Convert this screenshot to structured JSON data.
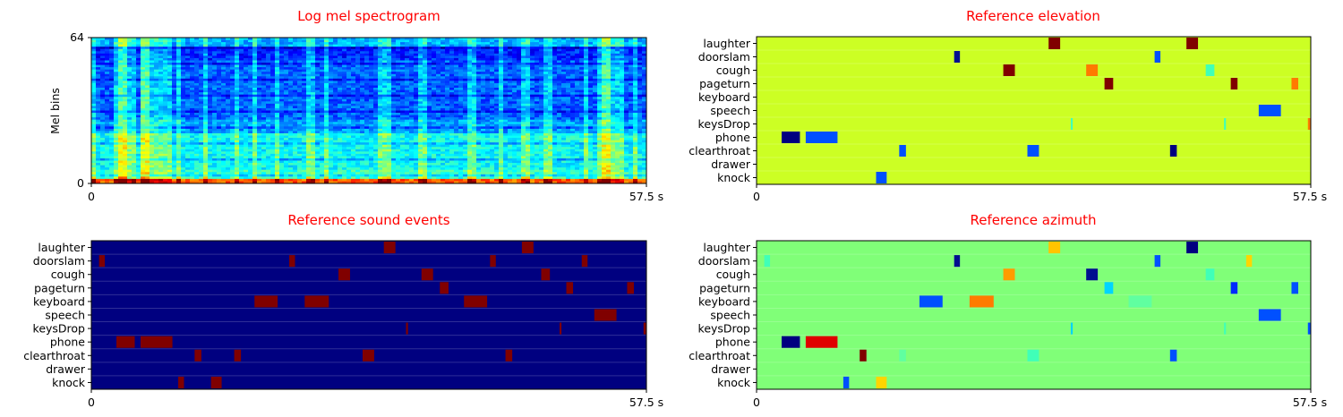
{
  "figure": {
    "title_color": "#ff0000",
    "background": "#ffffff"
  },
  "chart_data": [
    {
      "type": "heatmap",
      "id": "spectrogram",
      "title": "Log mel spectrogram",
      "ylabel": "Mel bins",
      "xlabel": "",
      "xlim": [
        0,
        57.5
      ],
      "ylim": [
        0,
        64
      ],
      "x_ticks": [
        "0",
        "57.5 s"
      ],
      "y_ticks": [
        "0",
        "64"
      ],
      "colormap": "jet",
      "noise_floor_band_color": "#00c0ff",
      "bright_columns_s": [
        0.3,
        2.6,
        3.2,
        4.5,
        5.6,
        9.0,
        11.8,
        15.1,
        17.0,
        19.2,
        22.7,
        24.3,
        29.9,
        30.6,
        34.2,
        39.4,
        42.4,
        45.0,
        47.2,
        51.2,
        52.8,
        53.6,
        56.4
      ],
      "loud_regions_s": [
        [
          2.6,
          4.3
        ],
        [
          5.2,
          8.4
        ],
        [
          52.8,
          55.0
        ]
      ]
    },
    {
      "type": "heatmap",
      "id": "elevation",
      "title": "Reference elevation",
      "xlim": [
        0,
        57.5
      ],
      "x_ticks": [
        "0",
        "57.5 s"
      ],
      "categories": [
        "laughter",
        "doorslam",
        "cough",
        "pageturn",
        "keyboard",
        "speech",
        "keysDrop",
        "phone",
        "clearthroat",
        "drawer",
        "knock"
      ],
      "background_color": "#ccff24",
      "events": [
        {
          "class": "laughter",
          "start": 30.3,
          "end": 31.5,
          "color": "#800000"
        },
        {
          "class": "laughter",
          "start": 44.6,
          "end": 45.8,
          "color": "#800000"
        },
        {
          "class": "doorslam",
          "start": 20.5,
          "end": 21.1,
          "color": "#000f8f"
        },
        {
          "class": "doorslam",
          "start": 41.3,
          "end": 41.9,
          "color": "#0050ff"
        },
        {
          "class": "cough",
          "start": 25.6,
          "end": 26.8,
          "color": "#800000"
        },
        {
          "class": "cough",
          "start": 34.2,
          "end": 35.4,
          "color": "#ff7a00"
        },
        {
          "class": "cough",
          "start": 46.6,
          "end": 47.5,
          "color": "#40ffb8"
        },
        {
          "class": "pageturn",
          "start": 36.1,
          "end": 37.0,
          "color": "#800000"
        },
        {
          "class": "pageturn",
          "start": 49.2,
          "end": 49.9,
          "color": "#800000"
        },
        {
          "class": "pageturn",
          "start": 55.5,
          "end": 56.2,
          "color": "#ff7a00"
        },
        {
          "class": "speech",
          "start": 52.1,
          "end": 54.4,
          "color": "#0050ff"
        },
        {
          "class": "keysDrop",
          "start": 32.6,
          "end": 32.8,
          "color": "#40ffb8"
        },
        {
          "class": "keysDrop",
          "start": 48.5,
          "end": 48.7,
          "color": "#40ffb8"
        },
        {
          "class": "keysDrop",
          "start": 57.2,
          "end": 57.5,
          "color": "#ff7a00"
        },
        {
          "class": "phone",
          "start": 2.6,
          "end": 4.5,
          "color": "#000080"
        },
        {
          "class": "phone",
          "start": 5.1,
          "end": 8.4,
          "color": "#0050ff"
        },
        {
          "class": "clearthroat",
          "start": 14.8,
          "end": 15.5,
          "color": "#0050ff"
        },
        {
          "class": "clearthroat",
          "start": 28.1,
          "end": 29.3,
          "color": "#0050ff"
        },
        {
          "class": "clearthroat",
          "start": 42.9,
          "end": 43.6,
          "color": "#000080"
        },
        {
          "class": "knock",
          "start": 12.4,
          "end": 13.5,
          "color": "#0050ff"
        }
      ]
    },
    {
      "type": "heatmap",
      "id": "events",
      "title": "Reference sound events",
      "xlim": [
        0,
        57.5
      ],
      "x_ticks": [
        "0",
        "57.5 s"
      ],
      "categories": [
        "laughter",
        "doorslam",
        "cough",
        "pageturn",
        "keyboard",
        "speech",
        "keysDrop",
        "phone",
        "clearthroat",
        "drawer",
        "knock"
      ],
      "background_color": "#000080",
      "events": [
        {
          "class": "laughter",
          "start": 30.3,
          "end": 31.5,
          "color": "#800000"
        },
        {
          "class": "laughter",
          "start": 44.6,
          "end": 45.8,
          "color": "#800000"
        },
        {
          "class": "doorslam",
          "start": 0.8,
          "end": 1.4,
          "color": "#800000"
        },
        {
          "class": "doorslam",
          "start": 20.5,
          "end": 21.1,
          "color": "#800000"
        },
        {
          "class": "doorslam",
          "start": 41.3,
          "end": 41.9,
          "color": "#800000"
        },
        {
          "class": "doorslam",
          "start": 50.8,
          "end": 51.4,
          "color": "#800000"
        },
        {
          "class": "cough",
          "start": 25.6,
          "end": 26.8,
          "color": "#800000"
        },
        {
          "class": "cough",
          "start": 34.2,
          "end": 35.4,
          "color": "#800000"
        },
        {
          "class": "cough",
          "start": 46.6,
          "end": 47.5,
          "color": "#800000"
        },
        {
          "class": "pageturn",
          "start": 36.1,
          "end": 37.0,
          "color": "#800000"
        },
        {
          "class": "pageturn",
          "start": 49.2,
          "end": 49.9,
          "color": "#800000"
        },
        {
          "class": "pageturn",
          "start": 55.5,
          "end": 56.2,
          "color": "#800000"
        },
        {
          "class": "keyboard",
          "start": 16.9,
          "end": 19.3,
          "color": "#800000"
        },
        {
          "class": "keyboard",
          "start": 22.1,
          "end": 24.6,
          "color": "#800000"
        },
        {
          "class": "keyboard",
          "start": 38.6,
          "end": 41.0,
          "color": "#800000"
        },
        {
          "class": "speech",
          "start": 52.1,
          "end": 54.4,
          "color": "#800000"
        },
        {
          "class": "keysDrop",
          "start": 32.6,
          "end": 32.8,
          "color": "#800000"
        },
        {
          "class": "keysDrop",
          "start": 48.5,
          "end": 48.7,
          "color": "#800000"
        },
        {
          "class": "keysDrop",
          "start": 57.2,
          "end": 57.5,
          "color": "#800000"
        },
        {
          "class": "phone",
          "start": 2.6,
          "end": 4.5,
          "color": "#800000"
        },
        {
          "class": "phone",
          "start": 5.1,
          "end": 8.4,
          "color": "#800000"
        },
        {
          "class": "clearthroat",
          "start": 10.7,
          "end": 11.4,
          "color": "#800000"
        },
        {
          "class": "clearthroat",
          "start": 14.8,
          "end": 15.5,
          "color": "#800000"
        },
        {
          "class": "clearthroat",
          "start": 28.1,
          "end": 29.3,
          "color": "#800000"
        },
        {
          "class": "clearthroat",
          "start": 42.9,
          "end": 43.6,
          "color": "#800000"
        },
        {
          "class": "knock",
          "start": 9.0,
          "end": 9.6,
          "color": "#800000"
        },
        {
          "class": "knock",
          "start": 12.4,
          "end": 13.5,
          "color": "#800000"
        }
      ]
    },
    {
      "type": "heatmap",
      "id": "azimuth",
      "title": "Reference azimuth",
      "xlim": [
        0,
        57.5
      ],
      "x_ticks": [
        "0",
        "57.5 s"
      ],
      "categories": [
        "laughter",
        "doorslam",
        "cough",
        "pageturn",
        "keyboard",
        "speech",
        "keysDrop",
        "phone",
        "clearthroat",
        "drawer",
        "knock"
      ],
      "background_color": "#80ff78",
      "events": [
        {
          "class": "laughter",
          "start": 30.3,
          "end": 31.5,
          "color": "#ffc400"
        },
        {
          "class": "laughter",
          "start": 44.6,
          "end": 45.8,
          "color": "#000080"
        },
        {
          "class": "doorslam",
          "start": 0.8,
          "end": 1.4,
          "color": "#40ffb8"
        },
        {
          "class": "doorslam",
          "start": 20.5,
          "end": 21.1,
          "color": "#000f8f"
        },
        {
          "class": "doorslam",
          "start": 41.3,
          "end": 41.9,
          "color": "#0050ff"
        },
        {
          "class": "doorslam",
          "start": 50.8,
          "end": 51.4,
          "color": "#ffd500"
        },
        {
          "class": "cough",
          "start": 25.6,
          "end": 26.8,
          "color": "#ff9c00"
        },
        {
          "class": "cough",
          "start": 34.2,
          "end": 35.4,
          "color": "#000f8f"
        },
        {
          "class": "cough",
          "start": 46.6,
          "end": 47.5,
          "color": "#40ffb8"
        },
        {
          "class": "pageturn",
          "start": 36.1,
          "end": 37.0,
          "color": "#00d4ff"
        },
        {
          "class": "pageturn",
          "start": 49.2,
          "end": 49.9,
          "color": "#0028ff"
        },
        {
          "class": "pageturn",
          "start": 55.5,
          "end": 56.2,
          "color": "#0050ff"
        },
        {
          "class": "keyboard",
          "start": 16.9,
          "end": 19.3,
          "color": "#0050ff"
        },
        {
          "class": "keyboard",
          "start": 22.1,
          "end": 24.6,
          "color": "#ff7a00"
        },
        {
          "class": "keyboard",
          "start": 38.6,
          "end": 41.0,
          "color": "#60ffa0"
        },
        {
          "class": "speech",
          "start": 52.1,
          "end": 54.4,
          "color": "#0050ff"
        },
        {
          "class": "keysDrop",
          "start": 32.6,
          "end": 32.8,
          "color": "#00d4ff"
        },
        {
          "class": "keysDrop",
          "start": 48.5,
          "end": 48.7,
          "color": "#40ffb8"
        },
        {
          "class": "keysDrop",
          "start": 57.2,
          "end": 57.5,
          "color": "#0050ff"
        },
        {
          "class": "phone",
          "start": 2.6,
          "end": 4.5,
          "color": "#000080"
        },
        {
          "class": "phone",
          "start": 5.1,
          "end": 8.4,
          "color": "#e00000"
        },
        {
          "class": "clearthroat",
          "start": 10.7,
          "end": 11.4,
          "color": "#800000"
        },
        {
          "class": "clearthroat",
          "start": 14.8,
          "end": 15.5,
          "color": "#60ffa0"
        },
        {
          "class": "clearthroat",
          "start": 28.1,
          "end": 29.3,
          "color": "#40ffb8"
        },
        {
          "class": "clearthroat",
          "start": 42.9,
          "end": 43.6,
          "color": "#0050ff"
        },
        {
          "class": "knock",
          "start": 9.0,
          "end": 9.6,
          "color": "#0050ff"
        },
        {
          "class": "knock",
          "start": 12.4,
          "end": 13.5,
          "color": "#ffd500"
        }
      ]
    }
  ]
}
